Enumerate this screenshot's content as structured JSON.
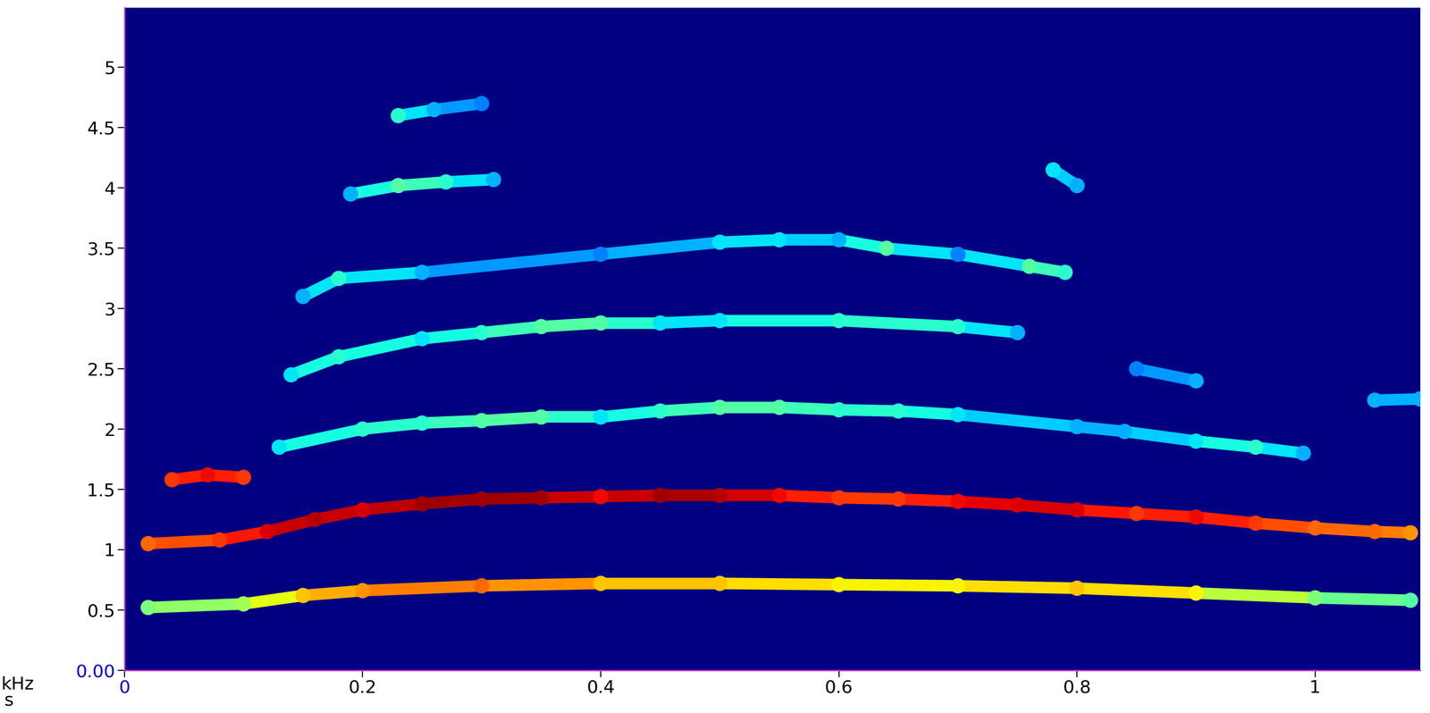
{
  "chart_data": {
    "type": "spectrogram",
    "xlabel": "s",
    "ylabel": "kHz",
    "xlim": [
      0,
      1.088
    ],
    "xticks": [
      0,
      0.2,
      0.4,
      0.6,
      0.8,
      1
    ],
    "ylim": [
      0,
      5.5
    ],
    "yticks": [
      {
        "value": 0,
        "label": "0.00"
      },
      0.5,
      1,
      1.5,
      2,
      2.5,
      3,
      3.5,
      4,
      4.5,
      5
    ],
    "clim": [
      0,
      1
    ],
    "series": [
      {
        "x": [
          0.02,
          0.1,
          0.15,
          0.2,
          0.3,
          0.4,
          0.5,
          0.6,
          0.7,
          0.8,
          0.9,
          1.0,
          1.08
        ],
        "values": [
          0.52,
          0.55,
          0.62,
          0.66,
          0.7,
          0.72,
          0.72,
          0.71,
          0.7,
          0.68,
          0.64,
          0.6,
          0.58
        ],
        "intensity": [
          0.5,
          0.55,
          0.7,
          0.75,
          0.8,
          0.7,
          0.7,
          0.65,
          0.65,
          0.7,
          0.65,
          0.5,
          0.45
        ]
      },
      {
        "x": [
          0.02,
          0.08,
          0.12,
          0.16,
          0.2,
          0.25,
          0.3,
          0.35,
          0.4,
          0.45,
          0.5,
          0.55,
          0.6,
          0.65,
          0.7,
          0.75,
          0.8,
          0.85,
          0.9,
          0.95,
          1.0,
          1.05,
          1.08
        ],
        "values": [
          1.05,
          1.08,
          1.15,
          1.25,
          1.33,
          1.38,
          1.42,
          1.43,
          1.44,
          1.45,
          1.45,
          1.45,
          1.43,
          1.42,
          1.4,
          1.37,
          1.33,
          1.3,
          1.27,
          1.22,
          1.18,
          1.15,
          1.14
        ],
        "intensity": [
          0.8,
          0.85,
          0.92,
          0.95,
          0.92,
          0.97,
          0.97,
          0.97,
          0.9,
          0.97,
          0.95,
          0.9,
          0.85,
          0.85,
          0.9,
          0.92,
          0.92,
          0.85,
          0.9,
          0.85,
          0.8,
          0.8,
          0.75
        ]
      },
      {
        "x": [
          0.04,
          0.07,
          0.1
        ],
        "values": [
          1.58,
          1.62,
          1.6
        ],
        "intensity": [
          0.85,
          0.9,
          0.85
        ]
      },
      {
        "x": [
          0.13,
          0.2,
          0.25,
          0.3,
          0.35,
          0.4,
          0.45,
          0.5,
          0.55,
          0.6,
          0.65,
          0.7,
          0.8,
          0.84,
          0.9,
          0.95,
          0.99
        ],
        "values": [
          1.85,
          2.0,
          2.05,
          2.07,
          2.1,
          2.1,
          2.15,
          2.18,
          2.18,
          2.16,
          2.15,
          2.12,
          2.02,
          1.98,
          1.9,
          1.85,
          1.8
        ],
        "intensity": [
          0.35,
          0.4,
          0.4,
          0.45,
          0.45,
          0.35,
          0.4,
          0.45,
          0.45,
          0.4,
          0.4,
          0.35,
          0.3,
          0.3,
          0.35,
          0.4,
          0.3
        ]
      },
      {
        "x": [
          1.05,
          1.088
        ],
        "values": [
          2.24,
          2.25
        ],
        "intensity": [
          0.3,
          0.3
        ]
      },
      {
        "x": [
          0.14,
          0.18,
          0.25,
          0.3,
          0.35,
          0.4,
          0.45,
          0.5,
          0.6,
          0.7,
          0.75
        ],
        "values": [
          2.45,
          2.6,
          2.75,
          2.8,
          2.85,
          2.88,
          2.88,
          2.9,
          2.9,
          2.85,
          2.8
        ],
        "intensity": [
          0.35,
          0.4,
          0.35,
          0.4,
          0.45,
          0.45,
          0.35,
          0.35,
          0.4,
          0.4,
          0.3
        ]
      },
      {
        "x": [
          0.85,
          0.9
        ],
        "values": [
          2.5,
          2.4
        ],
        "intensity": [
          0.25,
          0.3
        ]
      },
      {
        "x": [
          0.15,
          0.18,
          0.25,
          0.4,
          0.5,
          0.55,
          0.6,
          0.64,
          0.7,
          0.76,
          0.79
        ],
        "values": [
          3.1,
          3.25,
          3.3,
          3.45,
          3.55,
          3.57,
          3.57,
          3.5,
          3.45,
          3.35,
          3.3
        ],
        "intensity": [
          0.3,
          0.4,
          0.3,
          0.25,
          0.35,
          0.35,
          0.3,
          0.45,
          0.25,
          0.45,
          0.4
        ]
      },
      {
        "x": [
          0.19,
          0.23,
          0.27,
          0.31
        ],
        "values": [
          3.95,
          4.02,
          4.05,
          4.07
        ],
        "intensity": [
          0.3,
          0.45,
          0.4,
          0.3
        ]
      },
      {
        "x": [
          0.78,
          0.8
        ],
        "values": [
          4.15,
          4.02
        ],
        "intensity": [
          0.35,
          0.3
        ]
      },
      {
        "x": [
          0.23,
          0.26,
          0.3
        ],
        "values": [
          4.6,
          4.65,
          4.7
        ],
        "intensity": [
          0.4,
          0.3,
          0.25
        ]
      }
    ]
  }
}
